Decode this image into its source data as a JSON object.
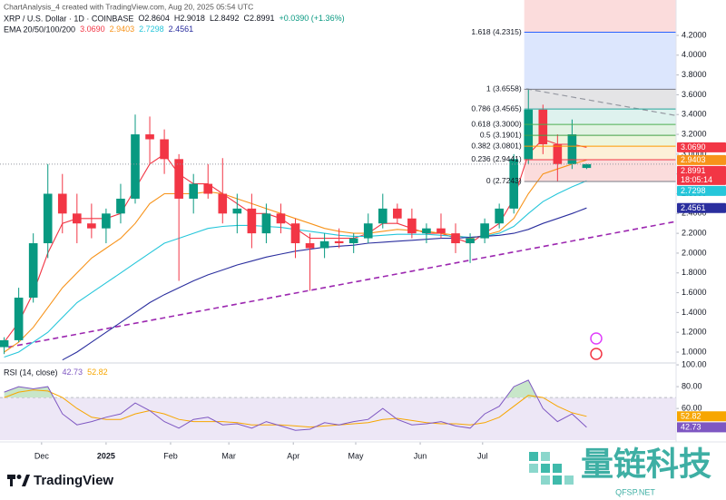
{
  "header": {
    "caption": "ChartAnalysis_4 created with TradingView.com, Aug 20, 2025 05:54 UTC",
    "symbol": "XRP / U.S. Dollar · 1D · COINBASE",
    "ohlc": [
      "O2.8604",
      "H2.9018",
      "L2.8492",
      "C2.8991",
      "+0.0390 (+1.36%)"
    ],
    "ema_title": "EMA 20/50/100/200"
  },
  "chart_data": [
    {
      "type": "candlestick",
      "x": [
        2,
        9,
        16,
        23,
        30,
        37,
        44,
        51,
        58,
        65,
        72,
        79,
        86,
        93,
        100,
        107,
        114,
        121,
        128,
        135,
        142,
        149,
        156,
        163,
        170,
        177,
        184,
        191,
        198,
        205,
        212,
        219,
        226,
        233,
        240,
        247,
        254,
        261,
        268,
        275,
        282
      ],
      "open": [
        1.05,
        1.12,
        1.55,
        2.1,
        2.6,
        2.4,
        2.3,
        2.25,
        2.4,
        2.55,
        3.2,
        3.15,
        2.95,
        2.55,
        2.7,
        2.6,
        2.4,
        2.45,
        2.2,
        2.4,
        2.3,
        2.1,
        2.05,
        2.12,
        2.1,
        2.15,
        2.3,
        2.45,
        2.35,
        2.2,
        2.25,
        2.2,
        2.1,
        2.15,
        2.3,
        2.45,
        2.95,
        3.45,
        3.1,
        2.9,
        2.8604
      ],
      "high": [
        1.15,
        1.65,
        2.2,
        2.9,
        2.8,
        2.6,
        2.5,
        2.45,
        2.7,
        3.4,
        3.38,
        3.25,
        3.0,
        2.8,
        2.9,
        2.96,
        2.6,
        2.6,
        2.5,
        2.5,
        2.35,
        2.2,
        2.2,
        2.25,
        2.2,
        2.4,
        2.6,
        2.5,
        2.45,
        2.3,
        2.4,
        2.3,
        2.2,
        2.35,
        2.5,
        3.0,
        3.66,
        3.5,
        3.2,
        3.35,
        2.9018
      ],
      "low": [
        0.98,
        1.1,
        1.5,
        1.95,
        2.2,
        2.1,
        2.15,
        2.1,
        2.3,
        2.5,
        2.9,
        2.8,
        1.72,
        2.4,
        2.55,
        2.3,
        2.2,
        2.05,
        2.1,
        2.2,
        1.95,
        1.62,
        1.95,
        2.05,
        2.0,
        2.1,
        2.25,
        2.3,
        2.15,
        2.1,
        2.15,
        2.0,
        1.9,
        2.1,
        2.25,
        2.4,
        2.9,
        3.0,
        2.72,
        2.85,
        2.8492
      ],
      "close": [
        1.12,
        1.55,
        2.1,
        2.6,
        2.4,
        2.3,
        2.25,
        2.4,
        2.55,
        3.2,
        3.15,
        2.95,
        2.55,
        2.7,
        2.6,
        2.4,
        2.45,
        2.2,
        2.4,
        2.3,
        2.1,
        2.05,
        2.12,
        2.1,
        2.15,
        2.3,
        2.45,
        2.35,
        2.2,
        2.25,
        2.2,
        2.1,
        2.15,
        2.3,
        2.45,
        2.95,
        3.45,
        3.1,
        2.9,
        3.2,
        2.8991
      ],
      "up_color": "#089981",
      "down_color": "#f23645",
      "xlim": [
        0,
        325
      ],
      "ylim": [
        0.89,
        4.42
      ],
      "xticks": [
        {
          "value": 20,
          "label": "Dec"
        },
        {
          "value": 51,
          "label": "2025"
        },
        {
          "value": 82,
          "label": "Feb"
        },
        {
          "value": 110,
          "label": "Mar"
        },
        {
          "value": 141,
          "label": "Apr"
        },
        {
          "value": 171,
          "label": "May"
        },
        {
          "value": 202,
          "label": "Jun"
        },
        {
          "value": 232,
          "label": "Jul"
        }
      ],
      "yticks": [
        {
          "value": 1.0,
          "label": "1.0000"
        },
        {
          "value": 1.2,
          "label": "1.2000"
        },
        {
          "value": 1.4,
          "label": "1.4000"
        },
        {
          "value": 1.6,
          "label": "1.6000"
        },
        {
          "value": 1.8,
          "label": "1.8000"
        },
        {
          "value": 2.0,
          "label": "2.0000"
        },
        {
          "value": 2.2,
          "label": "2.2000"
        },
        {
          "value": 2.4,
          "label": "2.4000"
        },
        {
          "value": 2.6,
          "label": "2.6000"
        },
        {
          "value": 2.8,
          "label": "2.8000"
        },
        {
          "value": 3.0,
          "label": "3.0000"
        },
        {
          "value": 3.2,
          "label": "3.2000"
        },
        {
          "value": 3.4,
          "label": "3.4000"
        },
        {
          "value": 3.6,
          "label": "3.6000"
        },
        {
          "value": 3.8,
          "label": "3.8000"
        },
        {
          "value": 4.0,
          "label": "4.0000"
        },
        {
          "value": 4.2,
          "label": "4.2000"
        }
      ],
      "grid": false,
      "last_price": {
        "value": 2.8991,
        "label": "2.8991",
        "color": "#f23645"
      },
      "countdown": "18:05:14",
      "overlays": [
        {
          "color": "#f23645",
          "values": [
            1.1,
            1.3,
            1.6,
            2.0,
            2.3,
            2.35,
            2.35,
            2.35,
            2.4,
            2.65,
            2.9,
            3.0,
            2.8,
            2.7,
            2.7,
            2.6,
            2.5,
            2.4,
            2.4,
            2.35,
            2.25,
            2.15,
            2.15,
            2.15,
            2.15,
            2.2,
            2.3,
            2.3,
            2.25,
            2.2,
            2.2,
            2.15,
            2.1,
            2.2,
            2.3,
            2.55,
            3.0,
            3.15,
            3.1,
            3.1,
            3.069
          ],
          "last": {
            "value": 3.069,
            "label": "3.0690"
          }
        },
        {
          "color": "#f7931a",
          "values": [
            1.0,
            1.1,
            1.25,
            1.45,
            1.65,
            1.8,
            1.95,
            2.05,
            2.15,
            2.3,
            2.5,
            2.6,
            2.6,
            2.6,
            2.62,
            2.6,
            2.55,
            2.5,
            2.45,
            2.4,
            2.35,
            2.3,
            2.25,
            2.22,
            2.2,
            2.2,
            2.22,
            2.24,
            2.23,
            2.22,
            2.2,
            2.18,
            2.15,
            2.18,
            2.22,
            2.35,
            2.6,
            2.8,
            2.85,
            2.9,
            2.9403
          ],
          "last": {
            "value": 2.9403,
            "label": "2.9403"
          }
        },
        {
          "color": "#26c6da",
          "values": [
            0.95,
            1.0,
            1.1,
            1.2,
            1.35,
            1.5,
            1.6,
            1.7,
            1.8,
            1.9,
            2.0,
            2.1,
            2.15,
            2.2,
            2.25,
            2.27,
            2.28,
            2.28,
            2.27,
            2.26,
            2.24,
            2.22,
            2.2,
            2.18,
            2.17,
            2.17,
            2.18,
            2.19,
            2.19,
            2.19,
            2.18,
            2.17,
            2.16,
            2.17,
            2.2,
            2.27,
            2.4,
            2.52,
            2.6,
            2.67,
            2.7298
          ],
          "last": {
            "value": 2.7298,
            "label": "2.7298"
          }
        },
        {
          "color": "#2a2e9e",
          "values": [
            null,
            null,
            null,
            null,
            0.92,
            1.0,
            1.1,
            1.2,
            1.3,
            1.4,
            1.5,
            1.58,
            1.65,
            1.72,
            1.78,
            1.83,
            1.88,
            1.92,
            1.96,
            1.99,
            2.02,
            2.04,
            2.06,
            2.07,
            2.08,
            2.1,
            2.11,
            2.12,
            2.13,
            2.14,
            2.15,
            2.15,
            2.16,
            2.17,
            2.18,
            2.2,
            2.24,
            2.3,
            2.35,
            2.4,
            2.4561
          ],
          "last": {
            "value": 2.4561,
            "label": "2.4561"
          }
        }
      ],
      "fib": {
        "x": [
          252,
          325
        ],
        "above_fill": "#fbdcdc",
        "levels": [
          {
            "label": "1.618 (4.2315)",
            "value": 4.2315,
            "color": "#2962ff",
            "fill": "#dce6fd"
          },
          {
            "label": "1 (3.6558)",
            "value": 3.6558,
            "color": "#787b86",
            "fill": "#e4e4e6"
          },
          {
            "label": "0.786 (3.4565)",
            "value": 3.4565,
            "color": "#26a69a",
            "fill": "#def2ee"
          },
          {
            "label": "0.618 (3.3000)",
            "value": 3.3,
            "color": "#4caf50",
            "fill": "#e2f3e3"
          },
          {
            "label": "0.5 (3.1901)",
            "value": 3.1901,
            "color": "#43a047",
            "fill": "#edf6dd"
          },
          {
            "label": "0.382 (3.0801)",
            "value": 3.0801,
            "color": "#ff9800",
            "fill": "#fdf0d8"
          },
          {
            "label": "0.236 (2.9441)",
            "value": 2.9441,
            "color": "#f23645",
            "fill": "#fbdcdc"
          },
          {
            "label": "0 (2.7243)",
            "value": 2.7243,
            "color": "#787b86"
          }
        ]
      },
      "trendlines": [
        {
          "x": [
            4,
            325
          ],
          "y": [
            1.05,
            2.32
          ],
          "color": "#9c27b0"
        },
        {
          "x": [
            253,
            325
          ],
          "y": [
            3.66,
            3.39
          ],
          "color": "#9598a1"
        }
      ]
    },
    {
      "type": "line",
      "title": "RSI (14, close)",
      "x": [
        2,
        9,
        16,
        23,
        30,
        37,
        44,
        51,
        58,
        65,
        72,
        79,
        86,
        93,
        100,
        107,
        114,
        121,
        128,
        135,
        142,
        149,
        156,
        163,
        170,
        177,
        184,
        191,
        198,
        205,
        212,
        219,
        226,
        233,
        240,
        247,
        254,
        261,
        268,
        275,
        282
      ],
      "xlim": [
        0,
        325
      ],
      "ylim": [
        31,
        101.7
      ],
      "yticks": [
        {
          "value": 100,
          "label": "100.00"
        },
        {
          "value": 80,
          "label": "80.00"
        },
        {
          "value": 60,
          "label": "60.00"
        }
      ],
      "band": [
        30,
        70
      ],
      "band_color": "#ede7f6",
      "overbought_color": "#c8e6c9",
      "series": [
        {
          "color": "#7e57c2",
          "values": [
            75,
            80,
            78,
            80,
            55,
            45,
            48,
            52,
            55,
            65,
            58,
            48,
            42,
            50,
            52,
            45,
            46,
            42,
            48,
            44,
            40,
            41,
            47,
            45,
            48,
            50,
            60,
            50,
            45,
            46,
            48,
            44,
            42,
            55,
            62,
            80,
            86,
            60,
            48,
            55,
            42.73
          ],
          "last": {
            "value": 42.73,
            "label": "42.73"
          }
        },
        {
          "color": "#f7a600",
          "values": [
            70,
            75,
            77,
            76,
            70,
            60,
            52,
            50,
            50,
            55,
            58,
            55,
            50,
            48,
            48,
            48,
            47,
            45,
            45,
            45,
            44,
            43,
            44,
            45,
            46,
            47,
            50,
            51,
            49,
            47,
            46,
            46,
            45,
            47,
            52,
            62,
            72,
            70,
            62,
            56,
            52.82
          ],
          "last": {
            "value": 52.82,
            "label": "52.82"
          }
        }
      ]
    }
  ],
  "footer": {
    "logo": "TradingView",
    "watermark": "量链科技",
    "watermark_sub": "QFSP.NET"
  }
}
